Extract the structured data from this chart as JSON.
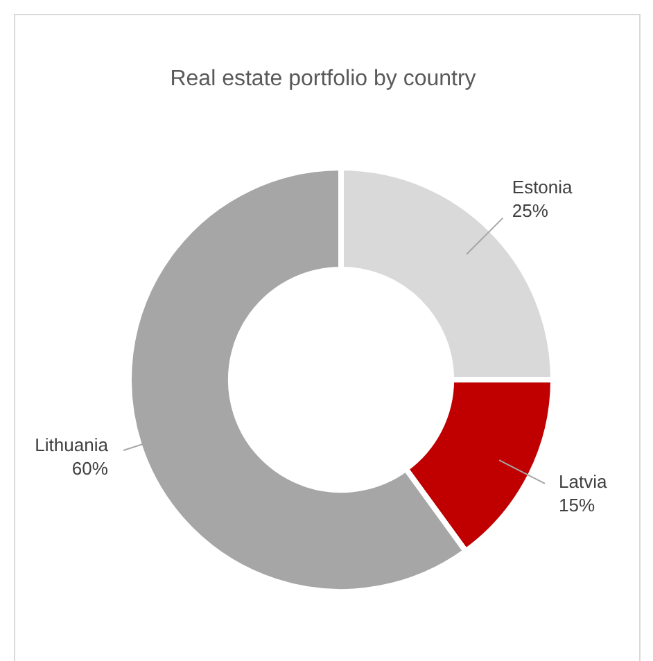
{
  "chart_data": {
    "type": "donut",
    "title": "Real estate portfolio by country",
    "categories": [
      "Estonia",
      "Latvia",
      "Lithuania"
    ],
    "values": [
      25,
      15,
      60
    ],
    "colors": [
      "#d9d9d9",
      "#c00000",
      "#a6a6a6"
    ],
    "value_labels": [
      "25%",
      "15%",
      "60%"
    ],
    "legend": false
  }
}
